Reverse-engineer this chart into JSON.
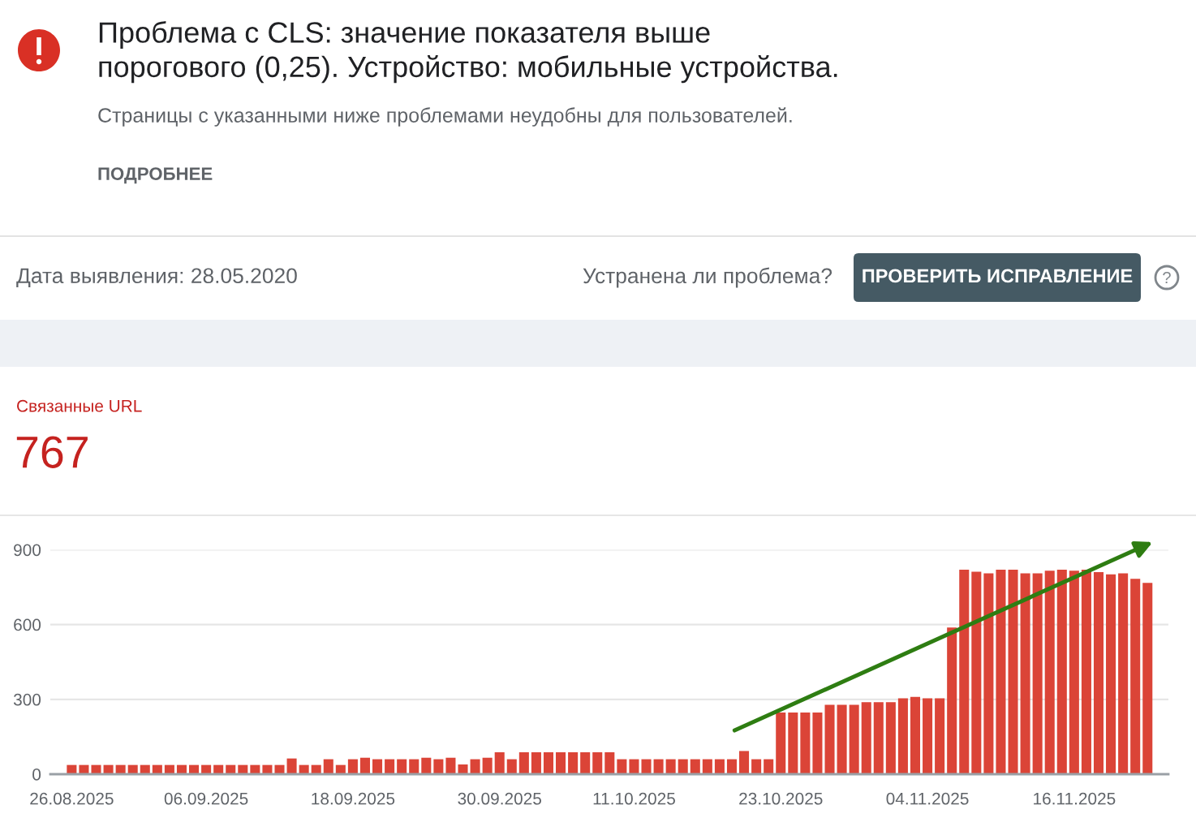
{
  "chart_data": {
    "type": "bar",
    "title": "Проблема с CLS: значение показателя выше\nпорогового (0,25). Устройство: мобильные устройства.",
    "subtitle": "Страницы с указанными ниже проблемами неудобны для пользователей.",
    "annotations": [
      "ПОДРОБНЕЕ",
      "Дата выявления: 28.05.2020",
      "Устранена ли проблема?",
      "ПРОВЕРИТЬ ИСПРАВЛЕНИЕ",
      "Связанные URL",
      "767"
    ],
    "x": [
      "2025-08-26",
      "2025-08-27",
      "2025-08-28",
      "2025-08-29",
      "2025-08-30",
      "2025-08-31",
      "2025-09-01",
      "2025-09-02",
      "2025-09-03",
      "2025-09-04",
      "2025-09-05",
      "2025-09-06",
      "2025-09-07",
      "2025-09-08",
      "2025-09-09",
      "2025-09-10",
      "2025-09-11",
      "2025-09-12",
      "2025-09-13",
      "2025-09-14",
      "2025-09-15",
      "2025-09-16",
      "2025-09-17",
      "2025-09-18",
      "2025-09-19",
      "2025-09-20",
      "2025-09-21",
      "2025-09-22",
      "2025-09-23",
      "2025-09-24",
      "2025-09-25",
      "2025-09-26",
      "2025-09-27",
      "2025-09-28",
      "2025-09-29",
      "2025-09-30",
      "2025-10-01",
      "2025-10-02",
      "2025-10-03",
      "2025-10-04",
      "2025-10-05",
      "2025-10-06",
      "2025-10-07",
      "2025-10-08",
      "2025-10-09",
      "2025-10-10",
      "2025-10-11",
      "2025-10-12",
      "2025-10-13",
      "2025-10-14",
      "2025-10-15",
      "2025-10-16",
      "2025-10-17",
      "2025-10-18",
      "2025-10-19",
      "2025-10-20",
      "2025-10-21",
      "2025-10-22",
      "2025-10-23",
      "2025-10-24",
      "2025-10-25",
      "2025-10-26",
      "2025-10-27",
      "2025-10-28",
      "2025-10-29",
      "2025-10-30",
      "2025-10-31",
      "2025-11-01",
      "2025-11-02",
      "2025-11-03",
      "2025-11-04",
      "2025-11-05",
      "2025-11-06",
      "2025-11-07",
      "2025-11-08",
      "2025-11-09",
      "2025-11-10",
      "2025-11-11",
      "2025-11-12",
      "2025-11-13",
      "2025-11-14",
      "2025-11-15",
      "2025-11-16",
      "2025-11-17",
      "2025-11-18",
      "2025-11-19",
      "2025-11-20",
      "2025-11-21",
      "2025-11-22"
    ],
    "values": [
      37,
      37,
      37,
      37,
      37,
      37,
      37,
      37,
      37,
      37,
      37,
      37,
      37,
      37,
      37,
      37,
      37,
      37,
      63,
      37,
      37,
      60,
      37,
      60,
      66,
      60,
      60,
      60,
      60,
      66,
      60,
      66,
      39,
      60,
      66,
      88,
      60,
      88,
      88,
      88,
      88,
      88,
      88,
      88,
      88,
      60,
      60,
      60,
      60,
      60,
      60,
      60,
      60,
      60,
      60,
      93,
      60,
      60,
      247,
      247,
      247,
      247,
      278,
      278,
      278,
      289,
      289,
      289,
      304,
      310,
      304,
      304,
      588,
      820,
      812,
      805,
      820,
      820,
      805,
      805,
      816,
      820,
      816,
      820,
      810,
      801,
      805,
      783,
      767
    ],
    "color": "#db4437",
    "xlim": [
      "2025-08-24T06:00",
      "2025-11-23T17:00"
    ],
    "xticks": [
      {
        "value": "2025-08-26",
        "label": "26.08.2025"
      },
      {
        "value": "2025-09-06",
        "label": "06.09.2025"
      },
      {
        "value": "2025-09-18",
        "label": "18.09.2025"
      },
      {
        "value": "2025-09-30",
        "label": "30.09.2025"
      },
      {
        "value": "2025-10-11",
        "label": "11.10.2025"
      },
      {
        "value": "2025-10-23",
        "label": "23.10.2025"
      },
      {
        "value": "2025-11-04",
        "label": "04.11.2025"
      },
      {
        "value": "2025-11-16",
        "label": "16.11.2025"
      }
    ],
    "ylim": [
      0,
      900
    ],
    "yticks": [
      0,
      300,
      600,
      900
    ],
    "grid": "y"
  }
}
